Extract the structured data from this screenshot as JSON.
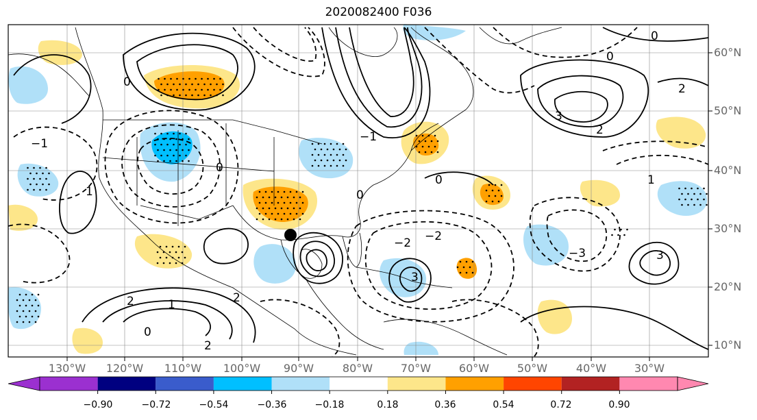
{
  "title": "2020082400 F036",
  "lat_labels": [
    "60°N",
    "50°N",
    "40°N",
    "30°N",
    "20°N",
    "10°N"
  ],
  "lon_labels": [
    "130°W",
    "120°W",
    "110°W",
    "100°W",
    "90°W",
    "80°W",
    "70°W",
    "60°W",
    "50°W",
    "40°W",
    "30°W"
  ],
  "colorbar": {
    "ticks": [
      "−0.90",
      "−0.72",
      "−0.54",
      "−0.36",
      "−0.18",
      "0.18",
      "0.36",
      "0.54",
      "0.72",
      "0.90"
    ],
    "colors": [
      "#9b30d0",
      "#000080",
      "#3a5ccc",
      "#00bfff",
      "#b0e0f8",
      "#ffffff",
      "#fde68a",
      "#ffa000",
      "#ff4500",
      "#b22222",
      "#ff88b0"
    ]
  },
  "contour_labels": [
    "0",
    "0",
    "0",
    "0",
    "0",
    "0",
    "0",
    "2",
    "2",
    "2",
    "2",
    "2",
    "1",
    "1",
    "1",
    "3",
    "3",
    "3",
    "−1",
    "−1",
    "−2",
    "−2",
    "−3"
  ],
  "marker": "storm-center-dot",
  "colors": {
    "negative_fill": "#b0e0f8",
    "positive_fill": "#fde68a",
    "strong_positive": "#ffa000",
    "strong_negative": "#00bfff"
  }
}
